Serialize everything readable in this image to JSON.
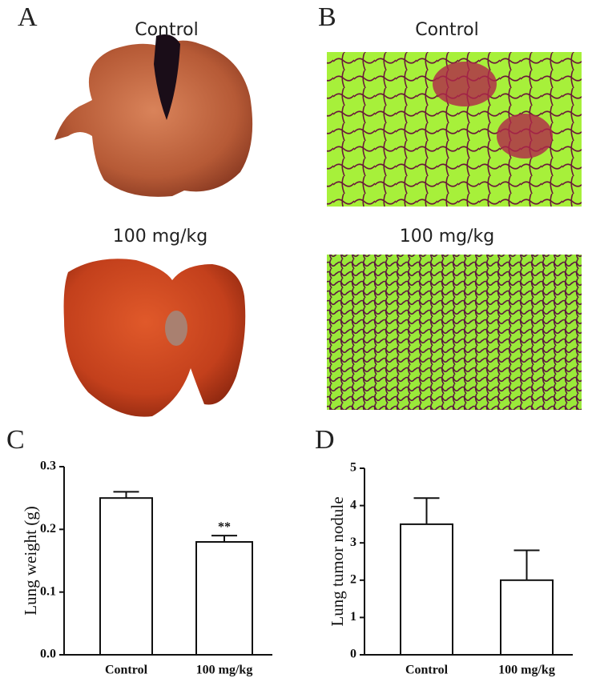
{
  "panel_labels": [
    "A",
    "B",
    "C",
    "D"
  ],
  "image_captions": {
    "A": [
      "Control",
      "100 mg/kg"
    ],
    "B": [
      "Control",
      "100 mg/kg"
    ]
  },
  "chart_data": [
    {
      "type": "bar",
      "ylabel": "Lung weight (g)",
      "categories": [
        "Control",
        "100 mg/kg"
      ],
      "values": [
        0.25,
        0.18
      ],
      "errors": [
        0.01,
        0.01
      ],
      "annotation": "**",
      "color": "#ffffff",
      "ylim": [
        0,
        0.3
      ],
      "yticks": [
        {
          "value": 0,
          "label": "0.0"
        },
        0.1,
        0.2,
        0.3
      ]
    },
    {
      "type": "bar",
      "ylabel": "Lung tumor nodule",
      "categories": [
        "Control",
        "100 mg/kg"
      ],
      "values": [
        3.5,
        2.0
      ],
      "errors": [
        0.7,
        0.8
      ],
      "color": "#ffffff",
      "ylim": [
        0,
        5
      ],
      "yticks": [
        0,
        1,
        2,
        3,
        4,
        5
      ]
    }
  ]
}
